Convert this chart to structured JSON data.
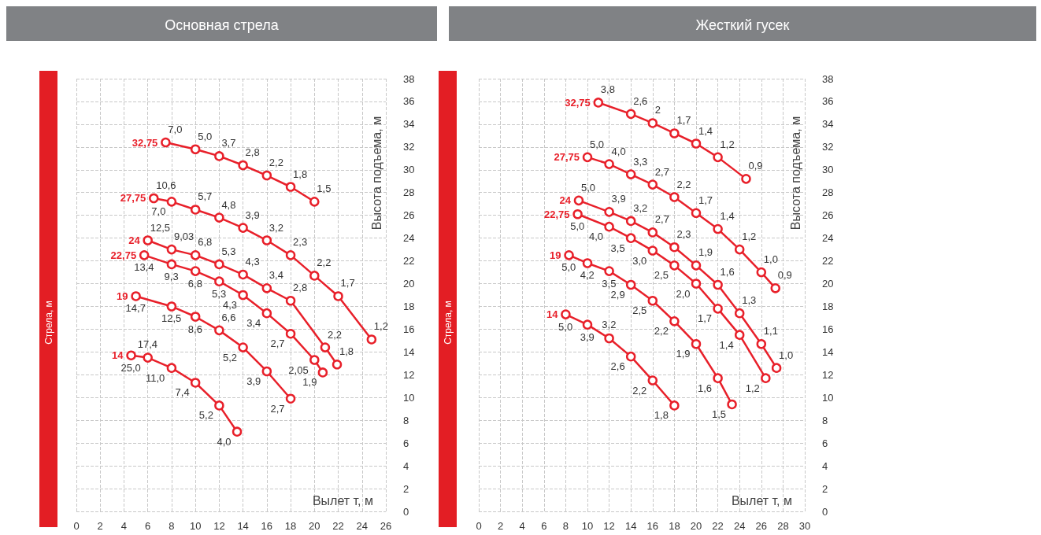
{
  "chart_data": [
    {
      "type": "line",
      "title": "Основная стрела",
      "legend_title": "Стрела, м",
      "xlabel": "Вылет т, м",
      "ylabel": "Высота подъема, м",
      "xlim": [
        0,
        26
      ],
      "xticks": [
        0,
        2,
        4,
        6,
        8,
        10,
        12,
        14,
        16,
        18,
        20,
        22,
        24,
        26
      ],
      "ylim": [
        0,
        38
      ],
      "yticks": [
        0,
        2,
        4,
        6,
        8,
        10,
        12,
        14,
        16,
        18,
        20,
        22,
        24,
        26,
        28,
        30,
        32,
        34,
        36,
        38
      ],
      "grid": true,
      "legend": false,
      "marker": "circle",
      "line_style": "solid",
      "series": [
        {
          "name": "32,75",
          "color": "#e8202a",
          "x": [
            7.5,
            10,
            12,
            14,
            16,
            18,
            20
          ],
          "values": [
            32.4,
            31.8,
            31.2,
            30.4,
            29.5,
            28.5,
            27.2
          ]
        },
        {
          "name": "27,75",
          "color": "#e8202a",
          "x": [
            6.5,
            8,
            10,
            12,
            14,
            16,
            18,
            20,
            22,
            24.8
          ],
          "values": [
            27.5,
            27.2,
            26.5,
            25.8,
            24.9,
            23.8,
            22.5,
            20.7,
            18.9,
            15.1
          ]
        },
        {
          "name": "24",
          "color": "#e8202a",
          "x": [
            6,
            8,
            10,
            12,
            14,
            16,
            18,
            20.9,
            21.9
          ],
          "values": [
            23.8,
            23.0,
            22.5,
            21.7,
            20.8,
            19.6,
            18.5,
            14.4,
            12.9
          ]
        },
        {
          "name": "22,75",
          "color": "#e8202a",
          "x": [
            5.7,
            8,
            10,
            12,
            14,
            16,
            18,
            20,
            20.7
          ],
          "values": [
            22.5,
            21.7,
            21.1,
            20.2,
            19.0,
            17.4,
            15.6,
            13.3,
            12.2
          ]
        },
        {
          "name": "19",
          "color": "#e8202a",
          "x": [
            5,
            8,
            10,
            12,
            14,
            16,
            18
          ],
          "values": [
            18.9,
            18.0,
            17.1,
            15.9,
            14.4,
            12.3,
            9.9
          ]
        },
        {
          "name": "14",
          "color": "#e8202a",
          "x": [
            4.6,
            6,
            8,
            10,
            12,
            13.5
          ],
          "values": [
            13.7,
            13.5,
            12.6,
            11.3,
            9.3,
            7.0
          ]
        }
      ],
      "annotations": [
        {
          "text": "7,0",
          "x": 7.5,
          "y": 32.4
        },
        {
          "text": "5,0",
          "x": 10,
          "y": 31.8
        },
        {
          "text": "3,7",
          "x": 12,
          "y": 31.2
        },
        {
          "text": "2,8",
          "x": 14,
          "y": 30.4
        },
        {
          "text": "2,2",
          "x": 16,
          "y": 29.5
        },
        {
          "text": "1,8",
          "x": 18,
          "y": 28.5
        },
        {
          "text": "1,5",
          "x": 20,
          "y": 27.2
        },
        {
          "text": "10,6",
          "x": 6.5,
          "y": 27.5
        },
        {
          "text": "7,0",
          "x": 8,
          "y": 27.2
        },
        {
          "text": "5,7",
          "x": 10,
          "y": 26.5
        },
        {
          "text": "4,8",
          "x": 12,
          "y": 25.8
        },
        {
          "text": "3,9",
          "x": 14,
          "y": 24.9
        },
        {
          "text": "3,2",
          "x": 16,
          "y": 23.8
        },
        {
          "text": "2,3",
          "x": 18,
          "y": 22.5
        },
        {
          "text": "2,2",
          "x": 20,
          "y": 20.7
        },
        {
          "text": "1,7",
          "x": 22,
          "y": 18.9
        },
        {
          "text": "1,2",
          "x": 24.8,
          "y": 15.1
        },
        {
          "text": "12,5",
          "x": 6,
          "y": 23.8
        },
        {
          "text": "9,03",
          "x": 8,
          "y": 23.0
        },
        {
          "text": "6,8",
          "x": 10,
          "y": 22.5
        },
        {
          "text": "5,3",
          "x": 12,
          "y": 21.7
        },
        {
          "text": "4,3",
          "x": 14,
          "y": 20.8
        },
        {
          "text": "3,4",
          "x": 16,
          "y": 19.6
        },
        {
          "text": "2,8",
          "x": 18,
          "y": 18.5
        },
        {
          "text": "2,2",
          "x": 20.9,
          "y": 14.4
        },
        {
          "text": "1,8",
          "x": 21.9,
          "y": 12.9
        },
        {
          "text": "13,4",
          "x": 5.7,
          "y": 22.5
        },
        {
          "text": "9,3",
          "x": 8,
          "y": 21.7
        },
        {
          "text": "6,8",
          "x": 10,
          "y": 21.1
        },
        {
          "text": "5,3",
          "x": 12,
          "y": 20.2
        },
        {
          "text": "4,3",
          "x": 14,
          "y": 19.0
        },
        {
          "text": "3,4",
          "x": 16,
          "y": 17.4
        },
        {
          "text": "2,7",
          "x": 18,
          "y": 15.6
        },
        {
          "text": "2,05",
          "x": 20,
          "y": 13.3
        },
        {
          "text": "1,9",
          "x": 20.7,
          "y": 12.2
        },
        {
          "text": "14,7",
          "x": 5,
          "y": 18.9
        },
        {
          "text": "12,5",
          "x": 8,
          "y": 18.0
        },
        {
          "text": "8,6",
          "x": 10,
          "y": 17.1
        },
        {
          "text": "6,6",
          "x": 12,
          "y": 15.9
        },
        {
          "text": "5,2",
          "x": 14,
          "y": 14.4
        },
        {
          "text": "3,9",
          "x": 16,
          "y": 12.3
        },
        {
          "text": "2,7",
          "x": 18,
          "y": 9.9
        },
        {
          "text": "25,0",
          "x": 4.6,
          "y": 13.7
        },
        {
          "text": "17,4",
          "x": 6,
          "y": 13.5
        },
        {
          "text": "11,0",
          "x": 8,
          "y": 12.6
        },
        {
          "text": "7,4",
          "x": 10,
          "y": 11.3
        },
        {
          "text": "5,2",
          "x": 12,
          "y": 9.3
        },
        {
          "text": "4,0",
          "x": 13.5,
          "y": 7.0
        }
      ]
    },
    {
      "type": "line",
      "title": "Жесткий гусек",
      "legend_title": "Стрела, м",
      "xlabel": "Вылет т, м",
      "ylabel": "Высота подъема, м",
      "xlim": [
        0,
        30
      ],
      "xticks": [
        0,
        2,
        4,
        6,
        8,
        10,
        12,
        14,
        16,
        18,
        20,
        22,
        24,
        26,
        28,
        30
      ],
      "ylim": [
        0,
        38
      ],
      "yticks": [
        0,
        2,
        4,
        6,
        8,
        10,
        12,
        14,
        16,
        18,
        20,
        22,
        24,
        26,
        28,
        30,
        32,
        34,
        36,
        38
      ],
      "grid": true,
      "legend": false,
      "marker": "circle",
      "line_style": "solid",
      "series": [
        {
          "name": "32,75",
          "color": "#e8202a",
          "x": [
            11,
            14,
            16,
            18,
            20,
            22,
            24.6
          ],
          "values": [
            35.9,
            34.9,
            34.1,
            33.2,
            32.3,
            31.1,
            29.2
          ]
        },
        {
          "name": "27,75",
          "color": "#e8202a",
          "x": [
            10,
            12,
            14,
            16,
            18,
            20,
            22,
            24,
            26,
            27.3
          ],
          "values": [
            31.1,
            30.5,
            29.6,
            28.7,
            27.6,
            26.2,
            24.8,
            23.0,
            21.0,
            19.6
          ]
        },
        {
          "name": "24",
          "color": "#e8202a",
          "x": [
            9.2,
            12,
            14,
            16,
            18,
            20,
            22,
            24,
            26,
            27.4
          ],
          "values": [
            27.3,
            26.3,
            25.5,
            24.5,
            23.2,
            21.6,
            19.9,
            17.4,
            14.7,
            12.6
          ]
        },
        {
          "name": "22,75",
          "color": "#e8202a",
          "x": [
            9.1,
            12,
            14,
            16,
            18,
            20,
            22,
            24,
            26.4
          ],
          "values": [
            26.1,
            25.0,
            24.0,
            22.9,
            21.6,
            20.0,
            17.8,
            15.5,
            11.7
          ]
        },
        {
          "name": "19",
          "color": "#e8202a",
          "x": [
            8.3,
            10,
            12,
            14,
            16,
            18,
            20,
            22,
            23.3
          ],
          "values": [
            22.5,
            21.8,
            21.1,
            19.9,
            18.5,
            16.7,
            14.7,
            11.7,
            9.4
          ]
        },
        {
          "name": "14",
          "color": "#e8202a",
          "x": [
            8,
            10,
            12,
            14,
            16,
            18
          ],
          "values": [
            17.3,
            16.4,
            15.2,
            13.6,
            11.5,
            9.3
          ]
        }
      ],
      "annotations": [
        {
          "text": "3,8",
          "x": 11,
          "y": 35.9
        },
        {
          "text": "2,6",
          "x": 14,
          "y": 34.9
        },
        {
          "text": "2",
          "x": 16,
          "y": 34.1
        },
        {
          "text": "1,7",
          "x": 18,
          "y": 33.2
        },
        {
          "text": "1,4",
          "x": 20,
          "y": 32.3
        },
        {
          "text": "1,2",
          "x": 22,
          "y": 31.1
        },
        {
          "text": "0,9",
          "x": 24.6,
          "y": 29.2
        },
        {
          "text": "5,0",
          "x": 10,
          "y": 31.1
        },
        {
          "text": "4,0",
          "x": 12,
          "y": 30.5
        },
        {
          "text": "3,3",
          "x": 14,
          "y": 29.6
        },
        {
          "text": "2,7",
          "x": 16,
          "y": 28.7
        },
        {
          "text": "2,2",
          "x": 18,
          "y": 27.6
        },
        {
          "text": "1,7",
          "x": 20,
          "y": 26.2
        },
        {
          "text": "1,4",
          "x": 22,
          "y": 24.8
        },
        {
          "text": "1,2",
          "x": 24,
          "y": 23.0
        },
        {
          "text": "1,0",
          "x": 26,
          "y": 21.0
        },
        {
          "text": "0,9",
          "x": 27.3,
          "y": 19.6
        },
        {
          "text": "5,0",
          "x": 9.2,
          "y": 27.3
        },
        {
          "text": "3,9",
          "x": 12,
          "y": 26.3
        },
        {
          "text": "3,2",
          "x": 14,
          "y": 25.5
        },
        {
          "text": "2,7",
          "x": 16,
          "y": 24.5
        },
        {
          "text": "2,3",
          "x": 18,
          "y": 23.2
        },
        {
          "text": "1,9",
          "x": 20,
          "y": 21.6
        },
        {
          "text": "1,6",
          "x": 22,
          "y": 19.9
        },
        {
          "text": "1,3",
          "x": 24,
          "y": 17.4
        },
        {
          "text": "1,1",
          "x": 26,
          "y": 14.7
        },
        {
          "text": "1,0",
          "x": 27.4,
          "y": 12.6
        },
        {
          "text": "5,0",
          "x": 9.1,
          "y": 26.1
        },
        {
          "text": "4,0",
          "x": 12,
          "y": 25.0
        },
        {
          "text": "3,5",
          "x": 14,
          "y": 24.0
        },
        {
          "text": "3,0",
          "x": 16,
          "y": 22.9
        },
        {
          "text": "2,5",
          "x": 18,
          "y": 21.6
        },
        {
          "text": "2,0",
          "x": 20,
          "y": 20.0
        },
        {
          "text": "1,7",
          "x": 22,
          "y": 17.8
        },
        {
          "text": "1,4",
          "x": 24,
          "y": 15.5
        },
        {
          "text": "1,2",
          "x": 26.4,
          "y": 11.7
        },
        {
          "text": "5,0",
          "x": 8.3,
          "y": 22.5
        },
        {
          "text": "4,2",
          "x": 10,
          "y": 21.8
        },
        {
          "text": "3,5",
          "x": 12,
          "y": 21.1
        },
        {
          "text": "2,9",
          "x": 14,
          "y": 19.9
        },
        {
          "text": "2,5",
          "x": 16,
          "y": 18.5
        },
        {
          "text": "2,2",
          "x": 18,
          "y": 16.7
        },
        {
          "text": "1,9",
          "x": 20,
          "y": 14.7
        },
        {
          "text": "1,6",
          "x": 22,
          "y": 11.7
        },
        {
          "text": "1,5",
          "x": 23.3,
          "y": 9.4
        },
        {
          "text": "5,0",
          "x": 8,
          "y": 17.3
        },
        {
          "text": "3,9",
          "x": 10,
          "y": 16.4
        },
        {
          "text": "3,2",
          "x": 12,
          "y": 15.2
        },
        {
          "text": "2,6",
          "x": 14,
          "y": 13.6
        },
        {
          "text": "2,2",
          "x": 16,
          "y": 11.5
        },
        {
          "text": "1,8",
          "x": 18,
          "y": 9.3
        }
      ]
    }
  ]
}
